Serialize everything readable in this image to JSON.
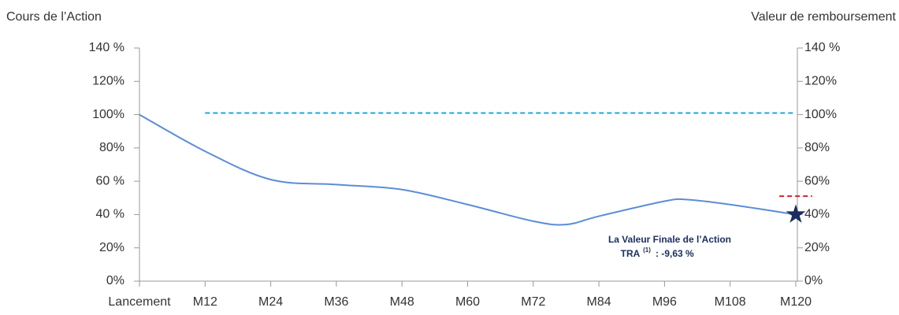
{
  "chart_data": {
    "type": "line",
    "y_label": "Cours de l’Action",
    "y2_label": "Valeur de remboursement",
    "xlim": [
      0,
      120
    ],
    "xticks": [
      {
        "value": 0,
        "label": "Lancement"
      },
      {
        "value": 12,
        "label": "M12"
      },
      {
        "value": 24,
        "label": "M24"
      },
      {
        "value": 36,
        "label": "M36"
      },
      {
        "value": 48,
        "label": "M48"
      },
      {
        "value": 60,
        "label": "M60"
      },
      {
        "value": 72,
        "label": "M72"
      },
      {
        "value": 84,
        "label": "M84"
      },
      {
        "value": 96,
        "label": "M96"
      },
      {
        "value": 108,
        "label": "M108"
      },
      {
        "value": 120,
        "label": "M120"
      }
    ],
    "ylim": [
      0,
      140
    ],
    "yticks": [
      {
        "value": 0,
        "label": "0%"
      },
      {
        "value": 20,
        "label": "20%"
      },
      {
        "value": 40,
        "label": "40 %"
      },
      {
        "value": 60,
        "label": "60 %"
      },
      {
        "value": 80,
        "label": "80%"
      },
      {
        "value": 100,
        "label": "100%"
      },
      {
        "value": 120,
        "label": "120%"
      },
      {
        "value": 140,
        "label": "140 %"
      }
    ],
    "y2lim": [
      0,
      140
    ],
    "y2ticks": [
      {
        "value": 0,
        "label": "0%"
      },
      {
        "value": 20,
        "label": "20%"
      },
      {
        "value": 40,
        "label": "40%"
      },
      {
        "value": 60,
        "label": "60%"
      },
      {
        "value": 80,
        "label": "80%"
      },
      {
        "value": 100,
        "label": "100%"
      },
      {
        "value": 120,
        "label": "120%"
      },
      {
        "value": 140,
        "label": "140 %"
      }
    ],
    "series": [
      {
        "color": "#5b8dd6",
        "style": "solid",
        "smooth": true,
        "x": [
          0,
          12,
          24,
          36,
          48,
          60,
          72,
          78,
          84,
          96,
          100,
          108,
          120
        ],
        "values": [
          100,
          78,
          61,
          58,
          55,
          46,
          36,
          34,
          39,
          48,
          49,
          46,
          40
        ]
      },
      {
        "color": "#1aa7e0",
        "style": "dashed",
        "axis": "y2",
        "x": [
          12,
          120
        ],
        "values": [
          101,
          101
        ]
      },
      {
        "color": "#d0202e",
        "style": "dashed",
        "axis": "y2",
        "x": [
          117,
          123
        ],
        "values": [
          51,
          51
        ]
      },
      {
        "color": "#1a2e5e",
        "style": "marker",
        "marker": "star",
        "x": [
          120
        ],
        "values": [
          40
        ]
      }
    ],
    "annotation": {
      "line1": "La Valeur Finale de l’Action",
      "line2": "TRA",
      "sup": "(1)",
      "line2_end": ": -9,63 %"
    }
  }
}
